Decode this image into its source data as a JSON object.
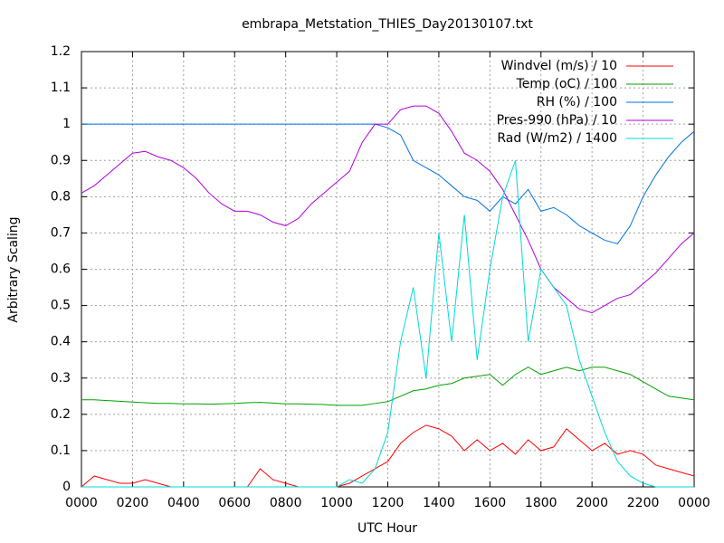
{
  "chart_data": {
    "type": "line",
    "title": "embrapa_Metstation_THIES_Day20130107.txt",
    "xlabel": "UTC Hour",
    "ylabel": "Arbitrary Scaling",
    "x": [
      0,
      0.5,
      1,
      1.5,
      2,
      2.5,
      3,
      3.5,
      4,
      4.5,
      5,
      5.5,
      6,
      6.5,
      7,
      7.5,
      8,
      8.5,
      9,
      9.5,
      10,
      10.5,
      11,
      11.5,
      12,
      12.5,
      13,
      13.5,
      14,
      14.5,
      15,
      15.5,
      16,
      16.5,
      17,
      17.5,
      18,
      18.5,
      19,
      19.5,
      20,
      20.5,
      21,
      21.5,
      22,
      22.5,
      23,
      23.5,
      24
    ],
    "xlim": [
      0,
      24
    ],
    "xticks": [
      {
        "value": 0,
        "label": "0000"
      },
      {
        "value": 2,
        "label": "0200"
      },
      {
        "value": 4,
        "label": "0400"
      },
      {
        "value": 6,
        "label": "0600"
      },
      {
        "value": 8,
        "label": "0800"
      },
      {
        "value": 10,
        "label": "1000"
      },
      {
        "value": 12,
        "label": "1200"
      },
      {
        "value": 14,
        "label": "1400"
      },
      {
        "value": 16,
        "label": "1600"
      },
      {
        "value": 18,
        "label": "1800"
      },
      {
        "value": 20,
        "label": "2000"
      },
      {
        "value": 22,
        "label": "2200"
      },
      {
        "value": 24,
        "label": "0000"
      }
    ],
    "ylim": [
      0,
      1.2
    ],
    "yticks": [
      0,
      0.1,
      0.2,
      0.3,
      0.4,
      0.5,
      0.6,
      0.7,
      0.8,
      0.9,
      1,
      1.1,
      1.2
    ],
    "grid": true,
    "legend": "top right",
    "series": [
      {
        "name": "Windvel (m/s) / 10",
        "color": "#ff0000",
        "values": [
          0,
          0.03,
          0.02,
          0.01,
          0.01,
          0.02,
          0.01,
          0,
          0,
          0,
          0,
          0,
          0,
          0,
          0.05,
          0.02,
          0.01,
          0,
          0,
          0,
          0,
          0.01,
          0.03,
          0.05,
          0.07,
          0.12,
          0.15,
          0.17,
          0.16,
          0.14,
          0.1,
          0.13,
          0.1,
          0.12,
          0.09,
          0.13,
          0.1,
          0.11,
          0.16,
          0.13,
          0.1,
          0.12,
          0.09,
          0.1,
          0.09,
          0.06,
          0.05,
          0.04,
          0.03
        ]
      },
      {
        "name": "Temp (oC) / 100",
        "color": "#00a000",
        "values": [
          0.24,
          0.24,
          0.238,
          0.236,
          0.234,
          0.232,
          0.23,
          0.23,
          0.229,
          0.229,
          0.228,
          0.229,
          0.23,
          0.232,
          0.233,
          0.231,
          0.229,
          0.229,
          0.228,
          0.227,
          0.225,
          0.225,
          0.225,
          0.23,
          0.235,
          0.25,
          0.265,
          0.27,
          0.28,
          0.285,
          0.3,
          0.305,
          0.31,
          0.28,
          0.31,
          0.33,
          0.31,
          0.32,
          0.33,
          0.32,
          0.33,
          0.33,
          0.32,
          0.31,
          0.29,
          0.27,
          0.25,
          0.245,
          0.24
        ]
      },
      {
        "name": "RH (%) / 100",
        "color": "#0070e0",
        "values": [
          1,
          1,
          1,
          1,
          1,
          1,
          1,
          1,
          1,
          1,
          1,
          1,
          1,
          1,
          1,
          1,
          1,
          1,
          1,
          1,
          1,
          1,
          1,
          1,
          0.99,
          0.97,
          0.9,
          0.88,
          0.86,
          0.83,
          0.8,
          0.79,
          0.76,
          0.8,
          0.78,
          0.82,
          0.76,
          0.77,
          0.75,
          0.72,
          0.7,
          0.68,
          0.67,
          0.72,
          0.8,
          0.86,
          0.91,
          0.95,
          0.98
        ]
      },
      {
        "name": "Pres-990 (hPa) / 10",
        "color": "#b000e0",
        "values": [
          0.81,
          0.83,
          0.86,
          0.89,
          0.92,
          0.925,
          0.91,
          0.9,
          0.88,
          0.85,
          0.81,
          0.78,
          0.76,
          0.76,
          0.75,
          0.73,
          0.72,
          0.74,
          0.78,
          0.81,
          0.84,
          0.87,
          0.95,
          1,
          1,
          1.04,
          1.05,
          1.05,
          1.03,
          0.98,
          0.92,
          0.9,
          0.87,
          0.82,
          0.75,
          0.68,
          0.6,
          0.55,
          0.52,
          0.49,
          0.48,
          0.5,
          0.52,
          0.53,
          0.56,
          0.59,
          0.63,
          0.67,
          0.7
        ]
      },
      {
        "name": "Rad (W/m2) / 1400",
        "color": "#00d8d8",
        "values": [
          0,
          0,
          0,
          0,
          0,
          0,
          0,
          0,
          0,
          0,
          0,
          0,
          0,
          0,
          0,
          0,
          0,
          0,
          0,
          0,
          0,
          0.02,
          0.01,
          0.05,
          0.15,
          0.4,
          0.55,
          0.3,
          0.7,
          0.4,
          0.75,
          0.35,
          0.6,
          0.8,
          0.9,
          0.4,
          0.6,
          0.55,
          0.5,
          0.35,
          0.25,
          0.15,
          0.07,
          0.03,
          0.01,
          0,
          0,
          0,
          0
        ]
      }
    ]
  }
}
